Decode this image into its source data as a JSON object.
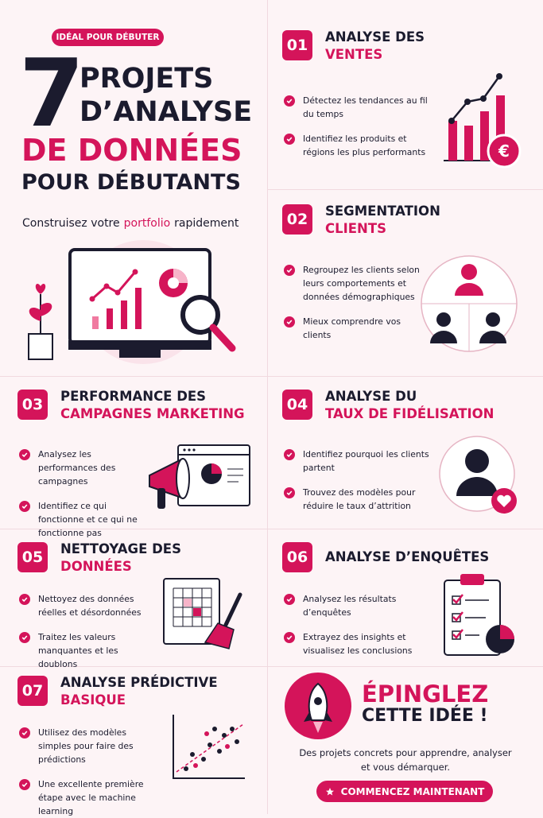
{
  "header": {
    "badge": "IDÉAL POUR DÉBUTER",
    "title_number": "7",
    "title_lines": [
      "PROJETS",
      "D’ANALYSE"
    ],
    "title_accent": "DE DONNÉES",
    "title_last": "POUR DÉBUTANTS",
    "subtitle_before": "Construisez votre",
    "subtitle_highlight": "portfolio",
    "subtitle_after": "rapidement"
  },
  "projects": [
    {
      "number": "01",
      "title_dark": "ANALYSE DES",
      "title_accent": "VENTES",
      "bullets": [
        "Détectez les tendances au fil du temps",
        "Identifiez les produits et régions les plus performants"
      ]
    },
    {
      "number": "02",
      "title_dark": "SEGMENTATION",
      "title_accent": "CLIENTS",
      "bullets": [
        "Regroupez les clients selon leurs comportements et données démographiques",
        "Mieux comprendre vos clients"
      ]
    },
    {
      "number": "03",
      "title_dark": "PERFORMANCE DES",
      "title_accent": "CAMPAGNES MARKETING",
      "bullets": [
        "Analysez les performances des campagnes",
        "Identifiez ce qui fonctionne et ce qui ne fonctionne pas"
      ]
    },
    {
      "number": "04",
      "title_dark": "ANALYSE DU",
      "title_accent": "TAUX DE FIDÉLISATION",
      "bullets": [
        "Identifiez pourquoi les clients partent",
        "Trouvez des modèles pour réduire le taux d’attrition"
      ]
    },
    {
      "number": "05",
      "title_dark": "NETTOYAGE DES",
      "title_accent": "DONNÉES",
      "bullets": [
        "Nettoyez des données réelles et désordonnées",
        "Traitez les valeurs manquantes et les doublons"
      ]
    },
    {
      "number": "06",
      "title_dark": "ANALYSE D’ENQUÊTES",
      "bullets": [
        "Analysez les résultats d’enquêtes",
        "Extrayez des insights et visualisez les conclusions"
      ]
    },
    {
      "number": "07",
      "title_dark": "ANALYSE PRÉDICTIVE",
      "title_accent": "BASIQUE",
      "bullets": [
        "Utilisez des modèles simples pour faire des prédictions",
        "Une excellente première étape avec le machine learning"
      ]
    }
  ],
  "cta": {
    "title_accent": "ÉPINGLEZ",
    "title_dark": "CETTE IDÉE !",
    "description": "Des projets concrets pour apprendre, analyser et vous démarquer.",
    "button": "COMMENCEZ MAINTENANT"
  }
}
